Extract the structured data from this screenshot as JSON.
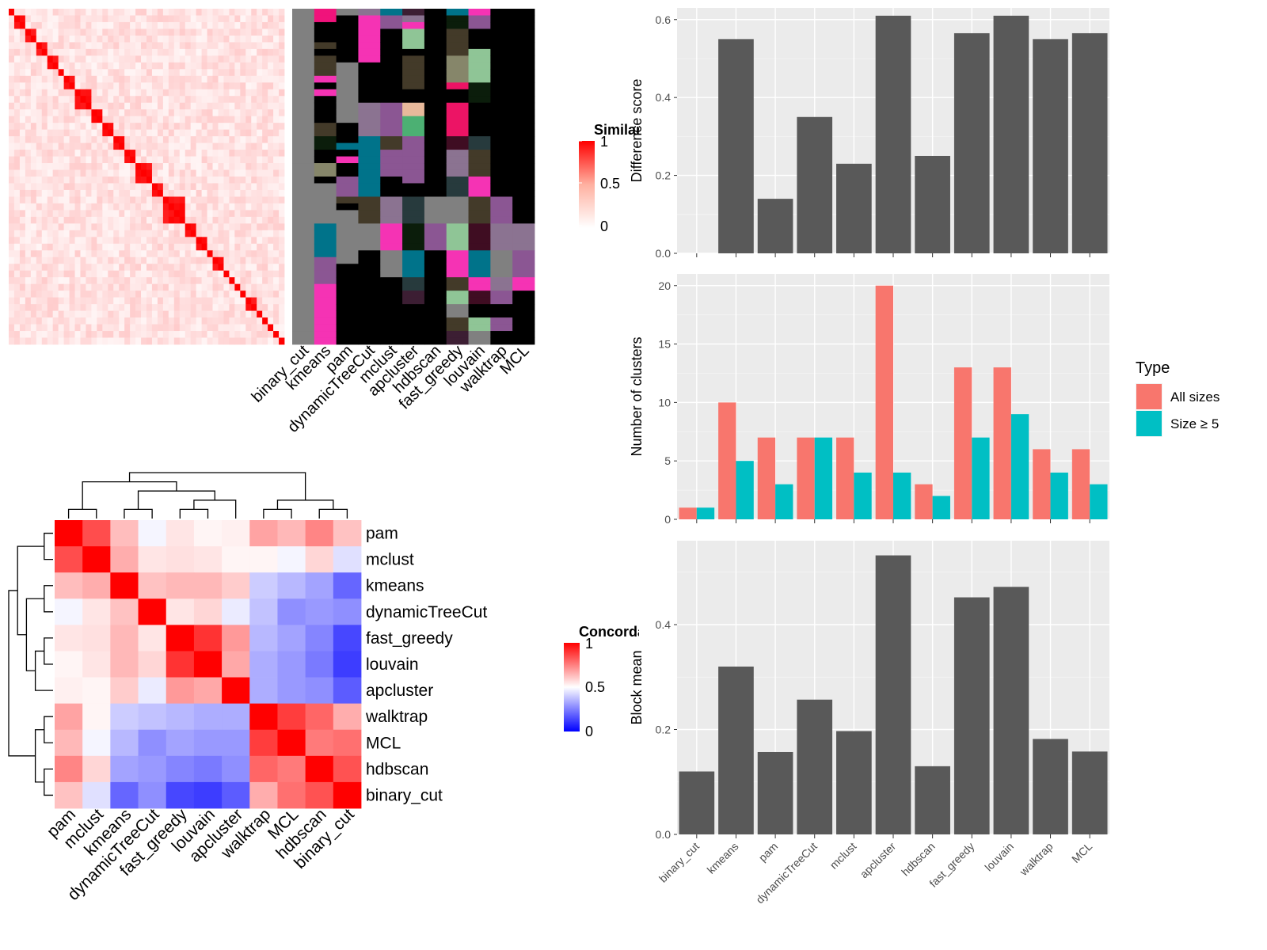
{
  "colors": {
    "bar": "#595959",
    "panel_bg": "#ebebeb",
    "grid": "#ffffff",
    "all_sizes": "#f8766d",
    "size_ge5": "#00bfc4",
    "category_palette": [
      "#000000",
      "#f0137b",
      "#808080",
      "#8b7391",
      "#00738a",
      "#3c1e33",
      "#f533b4",
      "#8b5693",
      "#433a29",
      "#8fc596",
      "#ec1465",
      "#273a3d",
      "#e8b99b",
      "#4cb073",
      "#0b1d0b",
      "#3f0d22",
      "#86866a"
    ]
  },
  "similarity_heatmap": {
    "legend_title": "Similarity",
    "legend_ticks": [
      "1",
      "0.5",
      "0"
    ],
    "methods": [
      "binary_cut",
      "kmeans",
      "pam",
      "dynamicTreeCut",
      "mclust",
      "apcluster",
      "hdbscan",
      "fast_greedy",
      "louvain",
      "walktrap",
      "MCL"
    ],
    "size": 50,
    "block_sizes": [
      1,
      2,
      2,
      2,
      2,
      1,
      2,
      3,
      2,
      2,
      2,
      2,
      3,
      2,
      4,
      2,
      2,
      1,
      2,
      1,
      1,
      1,
      1,
      2,
      1,
      1,
      1,
      1
    ],
    "membership": [
      [
        2,
        2,
        2,
        2,
        2,
        2,
        2,
        2,
        2,
        2,
        2,
        2,
        2,
        2,
        2,
        2,
        2,
        2,
        2,
        2,
        2,
        2,
        2,
        2,
        2,
        2,
        2,
        2,
        2,
        2,
        2,
        2,
        2,
        2,
        2,
        2,
        2,
        2,
        2,
        2,
        2,
        2,
        2,
        2,
        2,
        2,
        2,
        2,
        2,
        2
      ],
      [
        1,
        1,
        0,
        0,
        0,
        8,
        0,
        8,
        8,
        8,
        6,
        0,
        6,
        0,
        0,
        0,
        0,
        8,
        8,
        14,
        14,
        0,
        0,
        16,
        16,
        0,
        2,
        2,
        2,
        2,
        2,
        2,
        4,
        4,
        4,
        4,
        4,
        7,
        7,
        7,
        7,
        6,
        6,
        6,
        6,
        6,
        6,
        6,
        6,
        6
      ],
      [
        2,
        0,
        0,
        0,
        0,
        0,
        0,
        0,
        2,
        2,
        2,
        2,
        2,
        2,
        2,
        2,
        2,
        0,
        0,
        0,
        4,
        0,
        6,
        0,
        0,
        7,
        7,
        7,
        8,
        0,
        2,
        2,
        2,
        2,
        2,
        2,
        2,
        2,
        0,
        0,
        0,
        0,
        0,
        0,
        0,
        0,
        0,
        0,
        0,
        0
      ],
      [
        3,
        6,
        6,
        6,
        6,
        6,
        6,
        6,
        0,
        0,
        0,
        0,
        0,
        0,
        3,
        3,
        3,
        3,
        3,
        4,
        4,
        4,
        4,
        4,
        4,
        4,
        4,
        4,
        8,
        8,
        8,
        8,
        2,
        2,
        2,
        2,
        0,
        0,
        0,
        0,
        0,
        0,
        0,
        0,
        0,
        0,
        0,
        0,
        0,
        0
      ],
      [
        4,
        7,
        7,
        0,
        0,
        0,
        0,
        0,
        0,
        0,
        0,
        0,
        0,
        0,
        7,
        7,
        7,
        7,
        7,
        8,
        8,
        7,
        7,
        7,
        7,
        0,
        0,
        0,
        3,
        3,
        3,
        3,
        6,
        6,
        6,
        6,
        2,
        2,
        2,
        2,
        0,
        0,
        0,
        0,
        0,
        0,
        0,
        0,
        0,
        0
      ],
      [
        5,
        3,
        6,
        9,
        9,
        9,
        0,
        8,
        8,
        8,
        8,
        8,
        0,
        0,
        12,
        12,
        13,
        13,
        13,
        7,
        7,
        7,
        7,
        7,
        7,
        7,
        0,
        0,
        11,
        11,
        11,
        11,
        14,
        14,
        14,
        14,
        4,
        4,
        4,
        4,
        11,
        11,
        5,
        5,
        0,
        0,
        0,
        0,
        0,
        0
      ],
      [
        0,
        0,
        0,
        0,
        0,
        0,
        0,
        0,
        0,
        0,
        0,
        0,
        0,
        0,
        0,
        0,
        0,
        0,
        0,
        0,
        0,
        0,
        0,
        0,
        0,
        0,
        0,
        0,
        2,
        2,
        2,
        2,
        7,
        7,
        7,
        7,
        0,
        0,
        0,
        0,
        0,
        0,
        0,
        0,
        0,
        0,
        0,
        0,
        0,
        0
      ],
      [
        4,
        14,
        14,
        8,
        8,
        8,
        8,
        16,
        16,
        16,
        16,
        10,
        0,
        0,
        10,
        10,
        10,
        10,
        10,
        15,
        15,
        3,
        3,
        3,
        3,
        11,
        11,
        11,
        2,
        2,
        2,
        2,
        9,
        9,
        9,
        9,
        6,
        6,
        6,
        6,
        8,
        8,
        9,
        9,
        2,
        2,
        8,
        8,
        5,
        5
      ],
      [
        6,
        7,
        7,
        0,
        0,
        0,
        9,
        9,
        9,
        9,
        9,
        14,
        14,
        14,
        0,
        0,
        0,
        0,
        0,
        11,
        11,
        8,
        8,
        8,
        8,
        6,
        6,
        6,
        8,
        8,
        8,
        8,
        15,
        15,
        15,
        15,
        4,
        4,
        4,
        4,
        6,
        6,
        15,
        15,
        0,
        0,
        9,
        9,
        2,
        2
      ],
      [
        0,
        0,
        0,
        0,
        0,
        0,
        0,
        0,
        0,
        0,
        0,
        0,
        0,
        0,
        0,
        0,
        0,
        0,
        0,
        0,
        0,
        0,
        0,
        0,
        0,
        0,
        0,
        0,
        7,
        7,
        7,
        7,
        3,
        3,
        3,
        3,
        2,
        2,
        2,
        2,
        3,
        3,
        7,
        7,
        0,
        0,
        7,
        7,
        0,
        0
      ],
      [
        0,
        0,
        0,
        0,
        0,
        0,
        0,
        0,
        0,
        0,
        0,
        0,
        0,
        0,
        0,
        0,
        0,
        0,
        0,
        0,
        0,
        0,
        0,
        0,
        0,
        0,
        0,
        0,
        0,
        0,
        0,
        0,
        3,
        3,
        3,
        3,
        7,
        7,
        7,
        7,
        6,
        6,
        0,
        0,
        0,
        0,
        0,
        0,
        0,
        0
      ]
    ]
  },
  "concordance_heatmap": {
    "legend_title": "Concordance",
    "legend_ticks": [
      "1",
      "0.5",
      "0"
    ],
    "labels": [
      "pam",
      "mclust",
      "kmeans",
      "dynamicTreeCut",
      "fast_greedy",
      "louvain",
      "apcluster",
      "walktrap",
      "MCL",
      "hdbscan",
      "binary_cut"
    ],
    "matrix": [
      [
        1.0,
        0.85,
        0.63,
        0.48,
        0.55,
        0.52,
        0.53,
        0.68,
        0.64,
        0.74,
        0.62
      ],
      [
        0.85,
        1.0,
        0.66,
        0.55,
        0.56,
        0.55,
        0.52,
        0.52,
        0.48,
        0.58,
        0.44
      ],
      [
        0.63,
        0.66,
        1.0,
        0.62,
        0.64,
        0.64,
        0.6,
        0.4,
        0.36,
        0.32,
        0.2
      ],
      [
        0.48,
        0.55,
        0.62,
        1.0,
        0.55,
        0.58,
        0.46,
        0.38,
        0.28,
        0.3,
        0.28
      ],
      [
        0.55,
        0.56,
        0.64,
        0.55,
        1.0,
        0.9,
        0.7,
        0.36,
        0.32,
        0.26,
        0.14
      ],
      [
        0.52,
        0.55,
        0.64,
        0.58,
        0.9,
        1.0,
        0.67,
        0.34,
        0.3,
        0.24,
        0.12
      ],
      [
        0.53,
        0.52,
        0.6,
        0.46,
        0.7,
        0.67,
        1.0,
        0.34,
        0.3,
        0.28,
        0.18
      ],
      [
        0.68,
        0.52,
        0.4,
        0.38,
        0.36,
        0.34,
        0.34,
        1.0,
        0.88,
        0.8,
        0.66
      ],
      [
        0.64,
        0.48,
        0.36,
        0.28,
        0.32,
        0.3,
        0.3,
        0.88,
        1.0,
        0.76,
        0.78
      ],
      [
        0.74,
        0.58,
        0.32,
        0.3,
        0.26,
        0.24,
        0.28,
        0.8,
        0.76,
        1.0,
        0.84
      ],
      [
        0.62,
        0.44,
        0.2,
        0.28,
        0.14,
        0.12,
        0.18,
        0.66,
        0.78,
        0.84,
        1.0
      ]
    ]
  },
  "chart_data": [
    {
      "type": "bar",
      "ylabel": "Difference score",
      "categories": [
        "binary_cut",
        "kmeans",
        "pam",
        "dynamicTreeCut",
        "mclust",
        "apcluster",
        "hdbscan",
        "fast_greedy",
        "louvain",
        "walktrap",
        "MCL"
      ],
      "values": [
        0,
        0.55,
        0.14,
        0.35,
        0.23,
        0.61,
        0.25,
        0.565,
        0.61,
        0.55,
        0.565
      ],
      "ylim": [
        0,
        0.63
      ],
      "yticks": [
        0.0,
        0.2,
        0.4,
        0.6
      ],
      "ytick_labels": [
        "0.0",
        "0.2",
        "0.4",
        "0.6"
      ]
    },
    {
      "type": "bar",
      "ylabel": "Number of clusters",
      "categories": [
        "binary_cut",
        "kmeans",
        "pam",
        "dynamicTreeCut",
        "mclust",
        "apcluster",
        "hdbscan",
        "fast_greedy",
        "louvain",
        "walktrap",
        "MCL"
      ],
      "series": [
        {
          "name": "All sizes",
          "values": [
            1,
            10,
            7,
            7,
            7,
            20,
            3,
            13,
            13,
            6,
            6
          ]
        },
        {
          "name": "Size ≥ 5",
          "values": [
            1,
            5,
            3,
            7,
            4,
            4,
            2,
            7,
            9,
            4,
            3
          ]
        }
      ],
      "ylim": [
        0,
        21
      ],
      "yticks": [
        0,
        5,
        10,
        15,
        20
      ],
      "ytick_labels": [
        "0",
        "5",
        "10",
        "15",
        "20"
      ],
      "legend_title": "Type",
      "legend_position": "right"
    },
    {
      "type": "bar",
      "ylabel": "Block mean",
      "categories": [
        "binary_cut",
        "kmeans",
        "pam",
        "dynamicTreeCut",
        "mclust",
        "apcluster",
        "hdbscan",
        "fast_greedy",
        "louvain",
        "walktrap",
        "MCL"
      ],
      "values": [
        0.12,
        0.32,
        0.157,
        0.257,
        0.197,
        0.532,
        0.13,
        0.452,
        0.472,
        0.182,
        0.158
      ],
      "ylim": [
        0,
        0.56
      ],
      "yticks": [
        0.0,
        0.2,
        0.4
      ],
      "ytick_labels": [
        "0.0",
        "0.2",
        "0.4"
      ]
    }
  ]
}
